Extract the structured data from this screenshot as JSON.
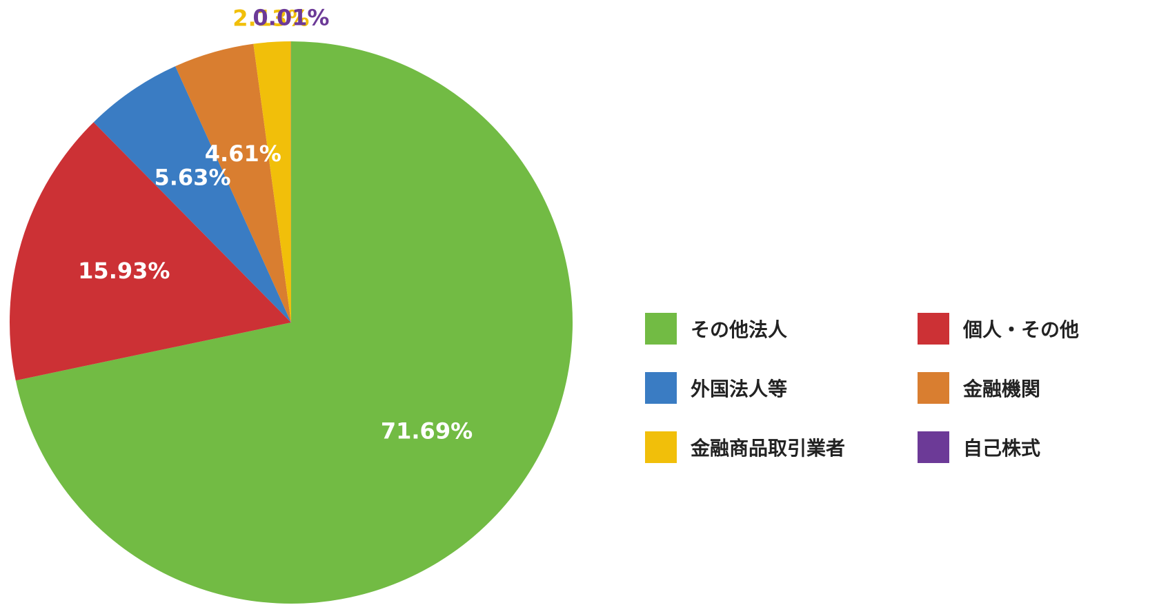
{
  "chart_data": {
    "type": "pie",
    "title": "",
    "slices": [
      {
        "name": "その他法人",
        "value": 71.69,
        "label": "71.69%",
        "color": "#72bb44",
        "label_color": "#ffffff",
        "label_position": "inside"
      },
      {
        "name": "個人・その他",
        "value": 15.93,
        "label": "15.93%",
        "color": "#cc3135",
        "label_color": "#ffffff",
        "label_position": "inside"
      },
      {
        "name": "外国法人等",
        "value": 5.63,
        "label": "5.63%",
        "color": "#3a7cc3",
        "label_color": "#ffffff",
        "label_position": "inside"
      },
      {
        "name": "金融機関",
        "value": 4.61,
        "label": "4.61%",
        "color": "#d97e30",
        "label_color": "#ffffff",
        "label_position": "inside"
      },
      {
        "name": "金融商品取引業者",
        "value": 2.13,
        "label": "2.13%",
        "color": "#f1bf0a",
        "label_color": "#f1bf0a",
        "label_position": "outside"
      },
      {
        "name": "自己株式",
        "value": 0.01,
        "label": "0.01%",
        "color": "#6c3a97",
        "label_color": "#6c3a97",
        "label_position": "outside"
      }
    ],
    "start_angle": "12 o'clock",
    "direction": "clockwise",
    "legend_position": "right",
    "legend_order": [
      "その他法人",
      "個人・その他",
      "外国法人等",
      "金融機関",
      "金融商品取引業者",
      "自己株式"
    ]
  }
}
